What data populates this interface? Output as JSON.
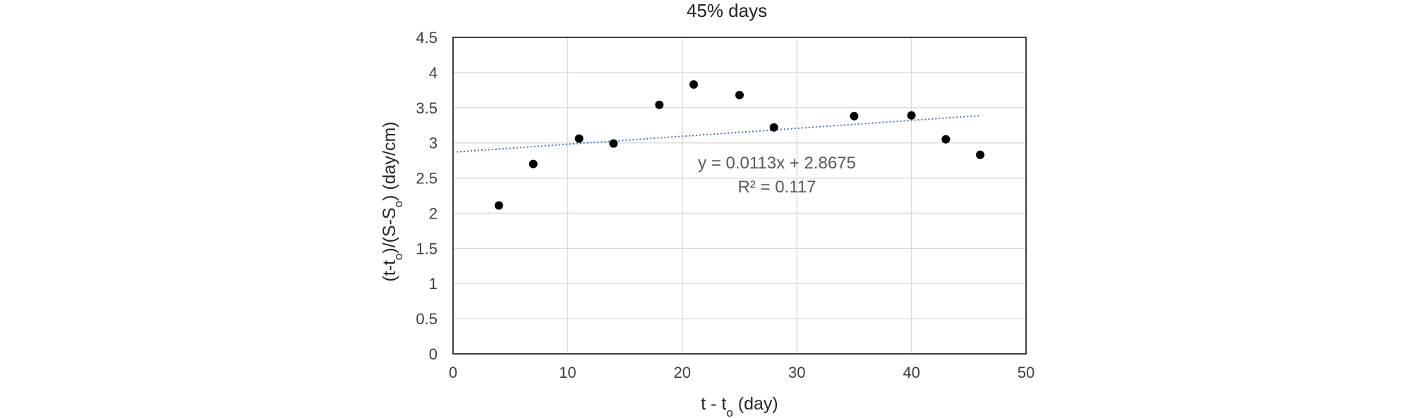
{
  "chart_data": {
    "type": "scatter",
    "title": "45% days",
    "xlabel": {
      "base": "t - t",
      "sub": "o",
      "tail": " (day)"
    },
    "ylabel": {
      "p1": "(t-t",
      "s1": "o",
      "p2": ")/(S-S",
      "s2": "o",
      "p3": ") (day/cm)"
    },
    "xlim": [
      0,
      50
    ],
    "ylim": [
      0,
      4.5
    ],
    "xticks": [
      0,
      10,
      20,
      30,
      40,
      50
    ],
    "yticks": [
      0,
      0.5,
      1,
      1.5,
      2,
      2.5,
      3,
      3.5,
      4,
      4.5
    ],
    "grid": true,
    "points": [
      {
        "x": 4,
        "y": 2.11
      },
      {
        "x": 7,
        "y": 2.7
      },
      {
        "x": 11,
        "y": 3.06
      },
      {
        "x": 14,
        "y": 2.99
      },
      {
        "x": 18,
        "y": 3.54
      },
      {
        "x": 21,
        "y": 3.83
      },
      {
        "x": 25,
        "y": 3.68
      },
      {
        "x": 28,
        "y": 3.22
      },
      {
        "x": 35,
        "y": 3.38
      },
      {
        "x": 40,
        "y": 3.39
      },
      {
        "x": 43,
        "y": 3.05
      },
      {
        "x": 46,
        "y": 2.83
      }
    ],
    "trendline": {
      "slope": 0.0113,
      "intercept": 2.8675,
      "x_range": [
        0,
        46
      ],
      "equation": "y = 0.0113x + 2.8675",
      "r2": "R² = 0.117"
    },
    "colors": {
      "points": "#000000",
      "trendline": "#4472c4",
      "grid": "#d9d9d9",
      "frame": "#000000"
    }
  }
}
